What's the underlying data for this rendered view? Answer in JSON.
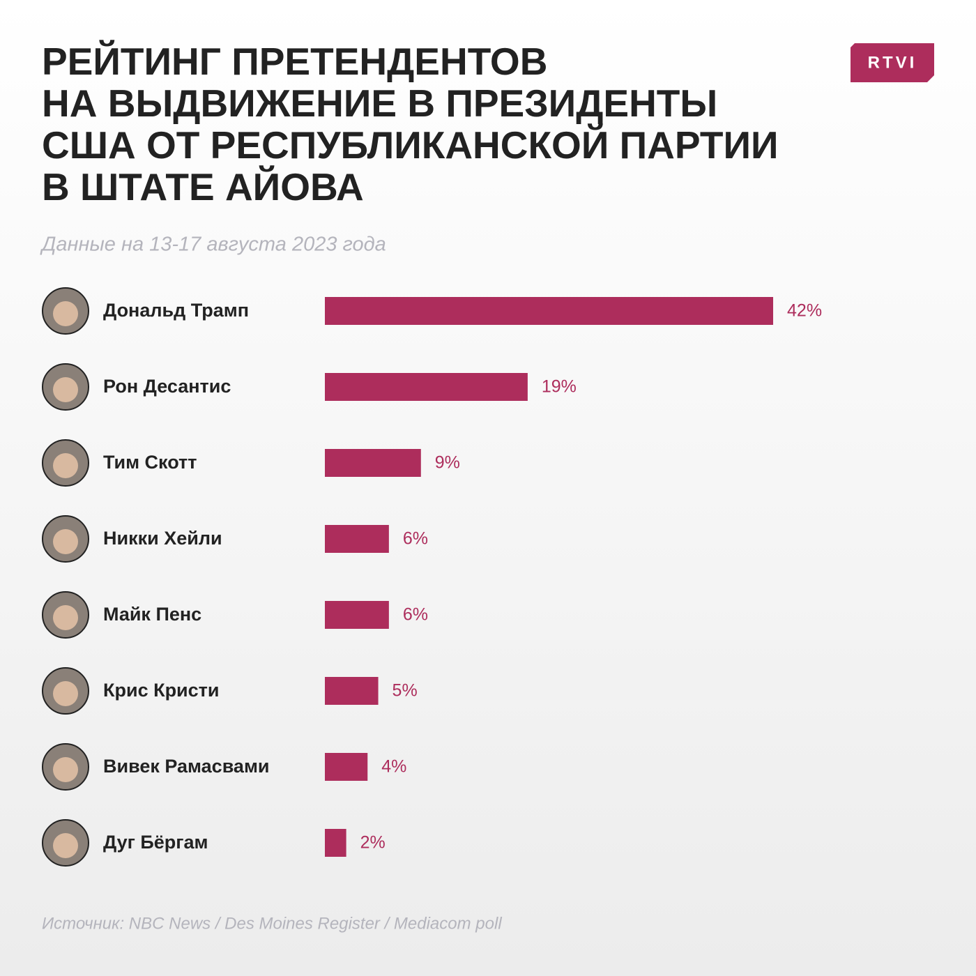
{
  "chart_data": {
    "type": "bar",
    "title": "РЕЙТИНГ ПРЕТЕНДЕНТОВ\nНА ВЫДВИЖЕНИЕ В ПРЕЗИДЕНТЫ\nСША ОТ РЕСПУБЛИКАНСКОЙ ПАРТИИ\nВ ШТАТЕ АЙОВА",
    "subtitle": "Данные на 13-17 августа 2023 года",
    "logo": "RTVI",
    "source": "Источник: NBC News / Des Moines Register / Mediacom poll",
    "categories": [
      "Дональд Трамп",
      "Рон Десантис",
      "Тим Скотт",
      "Никки Хейли",
      "Майк Пенс",
      "Крис Кристи",
      "Вивек Рамасвами",
      "Дуг Бёргам"
    ],
    "values": [
      42,
      19,
      9,
      6,
      6,
      5,
      4,
      2
    ],
    "value_labels": [
      "42%",
      "19%",
      "9%",
      "6%",
      "6%",
      "5%",
      "4%",
      "2%"
    ],
    "color": "#ad2d5c"
  }
}
